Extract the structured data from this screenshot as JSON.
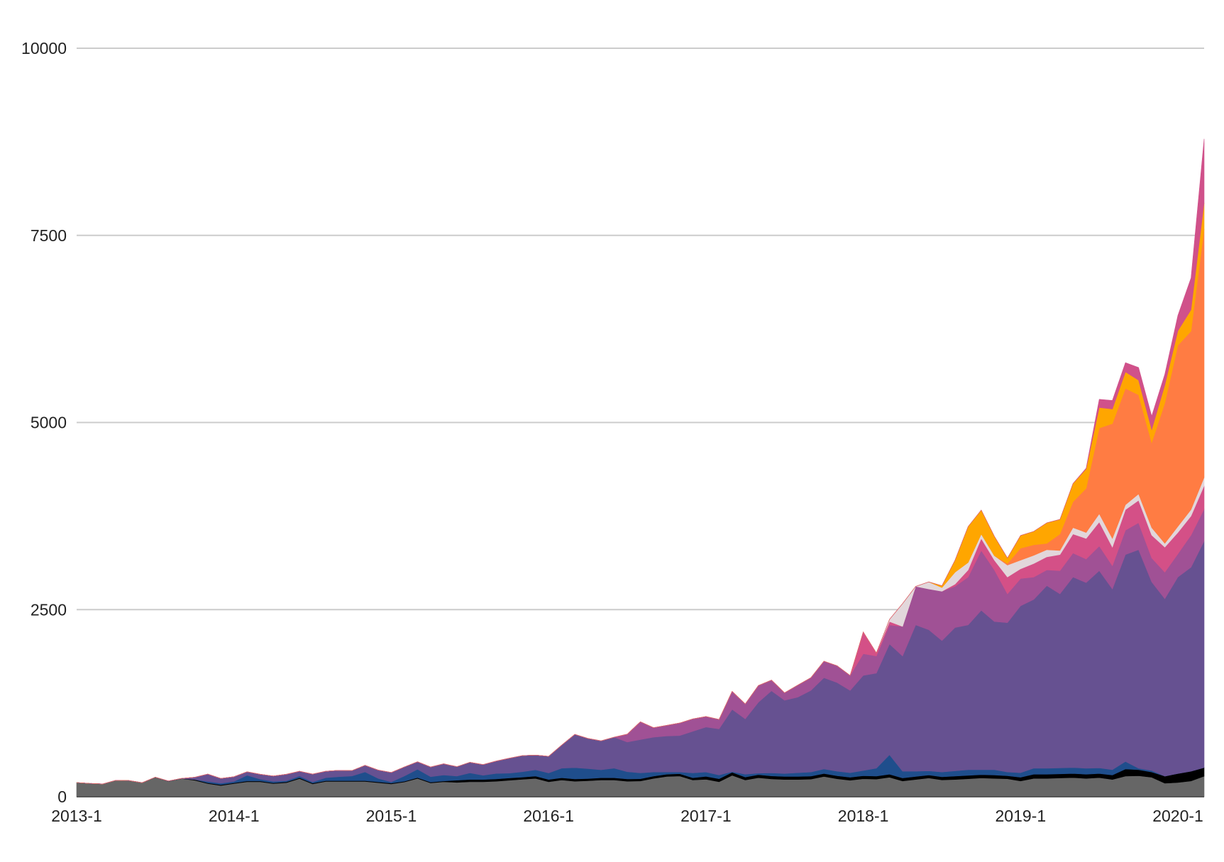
{
  "chart_data": {
    "type": "area",
    "stacked": true,
    "title": "",
    "xlabel": "",
    "ylabel": "",
    "ylim": [
      0,
      10000
    ],
    "grid": true,
    "legend": "none",
    "y_ticks": [
      "0",
      "2500",
      "5000",
      "7500",
      "10000"
    ],
    "y_tick_values": [
      0,
      2500,
      5000,
      7500,
      10000
    ],
    "x_ticks": [
      "2013-1",
      "2014-1",
      "2015-1",
      "2016-1",
      "2017-1",
      "2018-1",
      "2019-1",
      "2020-1"
    ],
    "x": [
      "2013-1",
      "2013-2",
      "2013-3",
      "2013-4",
      "2013-5",
      "2013-6",
      "2013-7",
      "2013-8",
      "2013-9",
      "2013-10",
      "2013-11",
      "2013-12",
      "2014-1",
      "2014-2",
      "2014-3",
      "2014-4",
      "2014-5",
      "2014-6",
      "2014-7",
      "2014-8",
      "2014-9",
      "2014-10",
      "2014-11",
      "2014-12",
      "2015-1",
      "2015-2",
      "2015-3",
      "2015-4",
      "2015-5",
      "2015-6",
      "2015-7",
      "2015-8",
      "2015-9",
      "2015-10",
      "2015-11",
      "2015-12",
      "2016-1",
      "2016-2",
      "2016-3",
      "2016-4",
      "2016-5",
      "2016-6",
      "2016-7",
      "2016-8",
      "2016-9",
      "2016-10",
      "2016-11",
      "2016-12",
      "2017-1",
      "2017-2",
      "2017-3",
      "2017-4",
      "2017-5",
      "2017-6",
      "2017-7",
      "2017-8",
      "2017-9",
      "2017-10",
      "2017-11",
      "2017-12",
      "2018-1",
      "2018-2",
      "2018-3",
      "2018-4",
      "2018-5",
      "2018-6",
      "2018-7",
      "2018-8",
      "2018-9",
      "2018-10",
      "2018-11",
      "2018-12",
      "2019-1",
      "2019-2",
      "2019-3",
      "2019-4",
      "2019-5",
      "2019-6",
      "2019-7",
      "2019-8",
      "2019-9",
      "2019-10",
      "2019-11",
      "2019-12",
      "2020-1",
      "2020-2",
      "2020-3"
    ],
    "series": [
      {
        "color": "#666666",
        "values": [
          190,
          178,
          172,
          220,
          216,
          188,
          260,
          207,
          242,
          220,
          175,
          150,
          175,
          200,
          200,
          175,
          188,
          242,
          172,
          204,
          204,
          204,
          204,
          188,
          172,
          197,
          245,
          184,
          200,
          191,
          200,
          200,
          207,
          220,
          232,
          245,
          200,
          223,
          207,
          213,
          223,
          223,
          207,
          210,
          245,
          270,
          277,
          223,
          232,
          200,
          286,
          223,
          254,
          238,
          230,
          230,
          235,
          270,
          240,
          220,
          240,
          235,
          260,
          210,
          230,
          250,
          225,
          230,
          240,
          250,
          245,
          240,
          210,
          245,
          245,
          250,
          255,
          245,
          255,
          230,
          275,
          280,
          260,
          180,
          190,
          210,
          275
        ]
      },
      {
        "color": "#000000",
        "values": [
          0,
          0,
          0,
          0,
          0,
          0,
          0,
          0,
          0,
          10,
          10,
          10,
          10,
          10,
          10,
          10,
          10,
          10,
          10,
          10,
          10,
          10,
          10,
          10,
          10,
          10,
          10,
          10,
          10,
          30,
          30,
          30,
          30,
          30,
          30,
          30,
          30,
          30,
          30,
          30,
          30,
          30,
          30,
          30,
          30,
          30,
          30,
          30,
          40,
          40,
          40,
          40,
          40,
          40,
          40,
          40,
          40,
          40,
          40,
          40,
          40,
          40,
          40,
          40,
          40,
          40,
          40,
          45,
          45,
          45,
          45,
          40,
          50,
          55,
          55,
          55,
          55,
          55,
          55,
          60,
          95,
          80,
          70,
          95,
          120,
          130,
          115
        ]
      },
      {
        "color": "#1f4e8c",
        "values": [
          0,
          0,
          0,
          0,
          0,
          0,
          2,
          3,
          3,
          0,
          20,
          20,
          20,
          76,
          25,
          20,
          15,
          25,
          15,
          40,
          53,
          63,
          117,
          47,
          15,
          70,
          111,
          73,
          80,
          55,
          88,
          56,
          74,
          65,
          72,
          84,
          88,
          128,
          151,
          132,
          106,
          128,
          97,
          78,
          55,
          30,
          23,
          65,
          58,
          50,
          9,
          37,
          21,
          40,
          40,
          50,
          55,
          60,
          60,
          60,
          70,
          105,
          260,
          90,
          70,
          55,
          65,
          70,
          75,
          65,
          70,
          50,
          60,
          80,
          80,
          80,
          80,
          80,
          75,
          70,
          100,
          20,
          20,
          0,
          0,
          0,
          0
        ]
      },
      {
        "color": "#665191",
        "values": [
          0,
          0,
          0,
          0,
          0,
          0,
          0,
          0,
          0,
          30,
          97,
          65,
          62,
          48,
          65,
          72,
          87,
          63,
          105,
          86,
          86,
          73,
          89,
          111,
          127,
          121,
          101,
          131,
          150,
          126,
          143,
          143,
          166,
          200,
          216,
          197,
          222,
          309,
          445,
          404,
          388,
          414,
          397,
          445,
          465,
          481,
          487,
          556,
          601,
          616,
          832,
          740,
          947,
          1097,
          978,
          1010,
          1090,
          1220,
          1185,
          1100,
          1270,
          1270,
          1480,
          1540,
          1955,
          1885,
          1755,
          1915,
          1935,
          2130,
          1980,
          1995,
          2230,
          2255,
          2440,
          2325,
          2545,
          2480,
          2635,
          2415,
          2765,
          2920,
          2520,
          2370,
          2625,
          2725,
          3025
        ]
      },
      {
        "color": "#a05195",
        "values": [
          0,
          0,
          0,
          0,
          0,
          0,
          0,
          0,
          0,
          0,
          0,
          0,
          0,
          0,
          0,
          0,
          0,
          0,
          0,
          0,
          0,
          0,
          0,
          0,
          0,
          0,
          0,
          0,
          0,
          0,
          0,
          0,
          0,
          0,
          0,
          0,
          0,
          0,
          0,
          0,
          0,
          0,
          105,
          238,
          127,
          143,
          168,
          166,
          141,
          127,
          241,
          200,
          223,
          143,
          101,
          160,
          170,
          220,
          225,
          200,
          290,
          230,
          255,
          395,
          515,
          545,
          660,
          550,
          640,
          800,
          690,
          385,
          365,
          300,
          210,
          310,
          320,
          315,
          330,
          310,
          325,
          360,
          320,
          355,
          310,
          430,
          430
        ]
      },
      {
        "color": "#d45087",
        "values": [
          0,
          0,
          0,
          0,
          0,
          0,
          0,
          0,
          0,
          0,
          0,
          0,
          0,
          0,
          0,
          0,
          0,
          0,
          0,
          0,
          0,
          0,
          0,
          0,
          0,
          0,
          0,
          0,
          0,
          0,
          0,
          0,
          0,
          0,
          0,
          0,
          0,
          0,
          0,
          0,
          0,
          0,
          0,
          0,
          0,
          0,
          0,
          0,
          0,
          0,
          0,
          0,
          0,
          0,
          0,
          0,
          0,
          0,
          0,
          0,
          290,
          40,
          45,
          0,
          0,
          0,
          0,
          30,
          95,
          160,
          130,
          225,
          130,
          180,
          175,
          215,
          255,
          275,
          320,
          250,
          275,
          300,
          305,
          335,
          285,
          255,
          310
        ]
      },
      {
        "color": "#e2d7db",
        "values": [
          0,
          0,
          0,
          0,
          0,
          0,
          0,
          0,
          0,
          0,
          0,
          0,
          0,
          0,
          0,
          0,
          0,
          0,
          0,
          0,
          0,
          0,
          0,
          0,
          0,
          0,
          0,
          0,
          0,
          0,
          0,
          0,
          0,
          0,
          0,
          0,
          0,
          0,
          0,
          0,
          0,
          0,
          0,
          0,
          0,
          0,
          0,
          0,
          0,
          0,
          0,
          0,
          0,
          0,
          0,
          0,
          0,
          0,
          0,
          0,
          0,
          0,
          30,
          305,
          0,
          95,
          50,
          160,
          100,
          60,
          60,
          160,
          115,
          110,
          95,
          55,
          85,
          80,
          110,
          115,
          65,
          85,
          100,
          50,
          80,
          85,
          110
        ]
      },
      {
        "color": "#ff7c43",
        "values": [
          0,
          0,
          0,
          0,
          0,
          0,
          0,
          0,
          0,
          0,
          0,
          0,
          0,
          0,
          0,
          0,
          0,
          0,
          0,
          0,
          0,
          0,
          0,
          0,
          0,
          0,
          0,
          0,
          0,
          0,
          0,
          0,
          0,
          0,
          0,
          0,
          0,
          0,
          0,
          0,
          0,
          0,
          0,
          0,
          0,
          0,
          0,
          0,
          0,
          0,
          0,
          0,
          0,
          0,
          0,
          0,
          0,
          0,
          0,
          0,
          0,
          0,
          0,
          0,
          0,
          0,
          0,
          0,
          0,
          0,
          0,
          20,
          160,
          140,
          85,
          220,
          345,
          590,
          1145,
          1535,
          1555,
          1325,
          1135,
          1875,
          2420,
          2385,
          3320
        ]
      },
      {
        "color": "#ffa600",
        "values": [
          0,
          0,
          0,
          0,
          0,
          0,
          0,
          0,
          0,
          0,
          0,
          0,
          0,
          0,
          0,
          0,
          0,
          0,
          0,
          0,
          0,
          0,
          0,
          0,
          0,
          0,
          0,
          0,
          0,
          0,
          0,
          0,
          0,
          0,
          0,
          0,
          0,
          0,
          0,
          0,
          0,
          0,
          0,
          0,
          0,
          0,
          0,
          0,
          0,
          0,
          0,
          0,
          0,
          0,
          0,
          0,
          0,
          0,
          0,
          0,
          0,
          0,
          0,
          0,
          0,
          0,
          25,
          160,
          480,
          320,
          260,
          75,
          170,
          180,
          275,
          195,
          245,
          260,
          275,
          195,
          220,
          195,
          175,
          240,
          195,
          285,
          350
        ]
      },
      {
        "color": "#d0518a",
        "values": [
          0,
          0,
          0,
          0,
          0,
          0,
          0,
          0,
          0,
          0,
          0,
          0,
          0,
          0,
          0,
          0,
          0,
          0,
          0,
          0,
          0,
          0,
          0,
          0,
          0,
          0,
          0,
          0,
          0,
          0,
          0,
          0,
          0,
          0,
          0,
          0,
          0,
          0,
          0,
          0,
          0,
          0,
          0,
          0,
          0,
          0,
          0,
          0,
          0,
          0,
          0,
          0,
          0,
          0,
          0,
          0,
          0,
          0,
          0,
          0,
          0,
          0,
          0,
          0,
          0,
          0,
          0,
          0,
          0,
          0,
          0,
          0,
          0,
          0,
          0,
          0,
          0,
          10,
          110,
          115,
          125,
          170,
          180,
          145,
          205,
          425,
          855
        ]
      }
    ]
  }
}
